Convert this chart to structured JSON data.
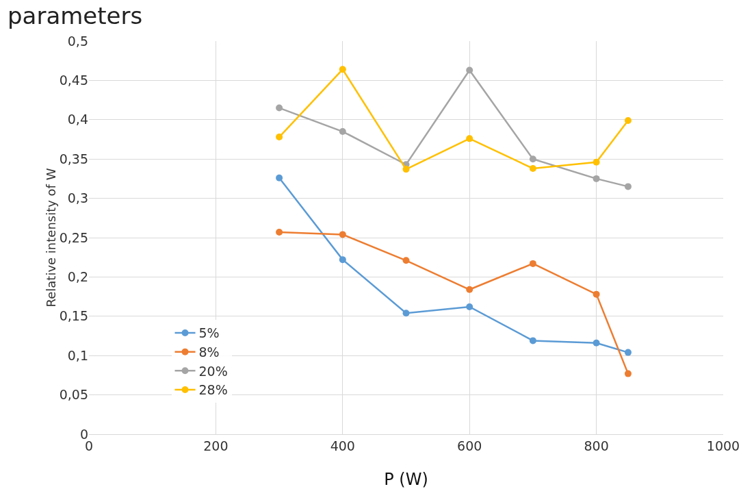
{
  "chart_data": {
    "type": "line",
    "title": "parameters",
    "xlabel": "P (W)",
    "ylabel": "Relative intensity of W",
    "x": [
      300,
      400,
      500,
      600,
      700,
      800,
      850
    ],
    "series": [
      {
        "name": "5%",
        "color": "#5b9bd5",
        "values": [
          0.326,
          0.222,
          0.154,
          0.162,
          0.119,
          0.116,
          0.104
        ]
      },
      {
        "name": "8%",
        "color": "#ed7d31",
        "values": [
          0.257,
          0.254,
          0.221,
          0.184,
          0.217,
          0.178,
          0.077
        ]
      },
      {
        "name": "20%",
        "color": "#a5a5a5",
        "values": [
          0.415,
          0.385,
          0.343,
          0.463,
          0.35,
          0.325,
          0.315
        ]
      },
      {
        "name": "28%",
        "color": "#ffc000",
        "values": [
          0.378,
          0.464,
          0.337,
          0.376,
          0.338,
          0.346,
          0.399
        ]
      }
    ],
    "xlim": [
      0,
      1000
    ],
    "xticks": [
      0,
      200,
      400,
      600,
      800,
      1000
    ],
    "ylim": [
      0,
      0.5
    ],
    "yticks": [
      0,
      {
        "value": 0.05,
        "label": "0,05"
      },
      {
        "value": 0.1,
        "label": "0,1"
      },
      {
        "value": 0.15,
        "label": "0,15"
      },
      {
        "value": 0.2,
        "label": "0,2"
      },
      {
        "value": 0.25,
        "label": "0,25"
      },
      {
        "value": 0.3,
        "label": "0,3"
      },
      {
        "value": 0.35,
        "label": "0,35"
      },
      {
        "value": 0.4,
        "label": "0,4"
      },
      {
        "value": 0.45,
        "label": "0,45"
      },
      {
        "value": 0.5,
        "label": "0,5"
      }
    ],
    "grid": true,
    "legend": "bottom left",
    "marker": "circle",
    "line_style": "solid"
  }
}
